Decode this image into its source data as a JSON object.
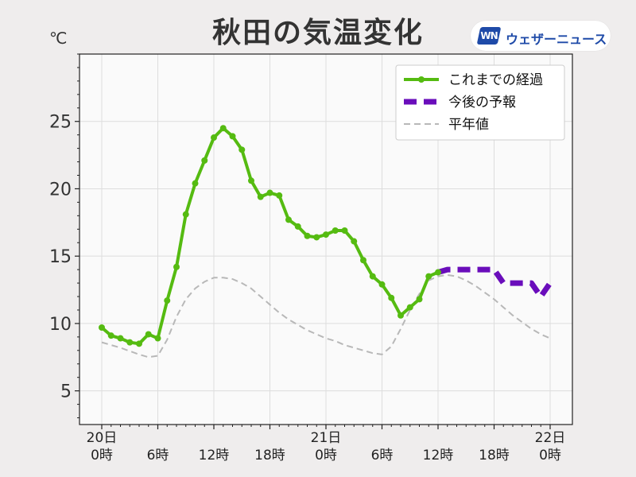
{
  "title": "秋田の気温変化",
  "unit": "℃",
  "logo": {
    "badge": "WN",
    "text": "ウェザーニュース"
  },
  "colors": {
    "observed": "#55bb11",
    "forecast": "#6a0dbb",
    "normal": "#b8b8b8",
    "plot_bg": "#fafafa",
    "grid": "#dddddd"
  },
  "chart_data": {
    "type": "line",
    "title": "秋田の気温変化",
    "ylabel": "℃",
    "xlim": [
      0,
      48
    ],
    "ylim": [
      2.5,
      30
    ],
    "y_ticks": [
      5,
      10,
      15,
      20,
      25
    ],
    "x_ticks": [
      {
        "x": 0,
        "label": [
          "20日",
          "0時"
        ]
      },
      {
        "x": 6,
        "label": [
          "6時"
        ]
      },
      {
        "x": 12,
        "label": [
          "12時"
        ]
      },
      {
        "x": 18,
        "label": [
          "18時"
        ]
      },
      {
        "x": 24,
        "label": [
          "21日",
          "0時"
        ]
      },
      {
        "x": 30,
        "label": [
          "6時"
        ]
      },
      {
        "x": 36,
        "label": [
          "12時"
        ]
      },
      {
        "x": 42,
        "label": [
          "18時"
        ]
      },
      {
        "x": 48,
        "label": [
          "22日",
          "0時"
        ]
      }
    ],
    "grid": true,
    "legend_position": "top-right",
    "series": [
      {
        "name": "これまでの経過",
        "style": "solid-markers",
        "x": [
          0,
          1,
          2,
          3,
          4,
          5,
          6,
          7,
          8,
          9,
          10,
          11,
          12,
          13,
          14,
          15,
          16,
          17,
          18,
          19,
          20,
          21,
          22,
          23,
          24,
          25,
          26,
          27,
          28,
          29,
          30,
          31,
          32,
          33,
          34,
          35,
          36
        ],
        "y": [
          9.7,
          9.1,
          8.9,
          8.6,
          8.5,
          9.2,
          8.9,
          11.7,
          14.2,
          18.1,
          20.4,
          22.1,
          23.8,
          24.5,
          23.9,
          22.9,
          20.6,
          19.4,
          19.7,
          19.5,
          17.7,
          17.2,
          16.5,
          16.4,
          16.6,
          16.9,
          16.9,
          16.1,
          14.7,
          13.5,
          12.9,
          11.9,
          10.6,
          11.2,
          11.8,
          13.5,
          13.8
        ]
      },
      {
        "name": "今後の予報",
        "style": "dashed-thick",
        "x": [
          36,
          37,
          38,
          39,
          40,
          41,
          42,
          43,
          44,
          45,
          46,
          47,
          48
        ],
        "y": [
          13.8,
          14.0,
          14.0,
          14.0,
          14.0,
          14.0,
          14.0,
          13.0,
          13.0,
          13.0,
          13.0,
          12.0,
          13.0
        ]
      },
      {
        "name": "平年値",
        "style": "dashed-thin",
        "x": [
          0,
          2,
          4,
          5,
          6,
          7,
          8,
          9,
          10,
          11,
          12,
          13,
          14,
          15,
          16,
          17,
          18,
          19,
          20,
          21,
          22,
          23,
          24,
          25,
          26,
          27,
          28,
          29,
          30,
          31,
          32,
          33,
          34,
          35,
          36,
          37,
          38,
          39,
          40,
          41,
          42,
          43,
          44,
          45,
          46,
          47,
          48
        ],
        "y": [
          8.6,
          8.2,
          7.7,
          7.5,
          7.6,
          8.8,
          10.5,
          11.8,
          12.6,
          13.1,
          13.4,
          13.4,
          13.3,
          13.0,
          12.6,
          12.0,
          11.4,
          10.8,
          10.3,
          9.9,
          9.5,
          9.2,
          8.9,
          8.7,
          8.4,
          8.2,
          8.0,
          7.8,
          7.7,
          8.3,
          9.6,
          11.0,
          12.2,
          13.2,
          13.5,
          13.6,
          13.5,
          13.2,
          12.8,
          12.3,
          11.8,
          11.2,
          10.6,
          10.1,
          9.6,
          9.2,
          8.9
        ]
      }
    ]
  }
}
